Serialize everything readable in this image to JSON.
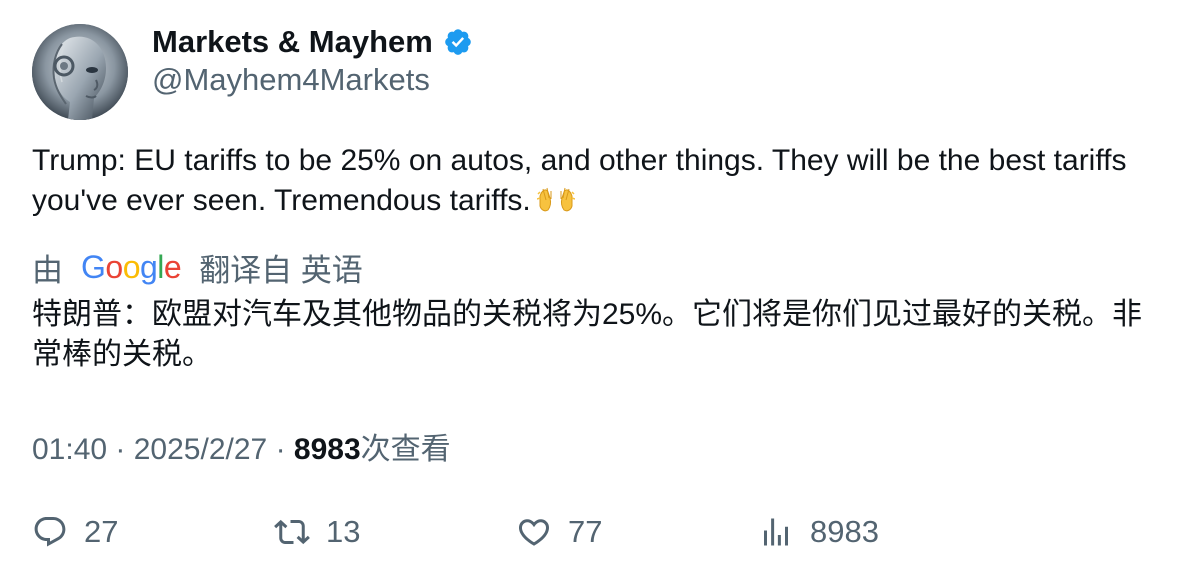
{
  "author": {
    "display_name": "Markets & Mayhem",
    "handle": "@Mayhem4Markets",
    "verified": true,
    "verified_color": "#1d9bf0"
  },
  "tweet": {
    "text": "Trump: EU tariffs to be 25% on autos, and other things. They will be the best tariffs you've ever seen. Tremendous tariffs.",
    "emoji": "👐"
  },
  "translation": {
    "prefix": "由",
    "provider": "Google",
    "suffix": "翻译自 英语",
    "text": "特朗普：欧盟对汽车及其他物品的关税将为25%。它们将是你们见过最好的关税。非常棒的关税。"
  },
  "meta": {
    "time": "01:40",
    "separator": "·",
    "date": "2025/2/27",
    "views_count": "8983",
    "views_label": "次查看"
  },
  "actions": {
    "replies": "27",
    "retweets": "13",
    "likes": "77",
    "views": "8983"
  },
  "icons": {
    "reply": "reply-icon",
    "retweet": "retweet-icon",
    "like": "heart-icon",
    "views": "bar-chart-icon",
    "verified": "verified-badge-icon"
  },
  "colors": {
    "text": "#0f1419",
    "secondary": "#536471",
    "accent": "#1d9bf0"
  }
}
